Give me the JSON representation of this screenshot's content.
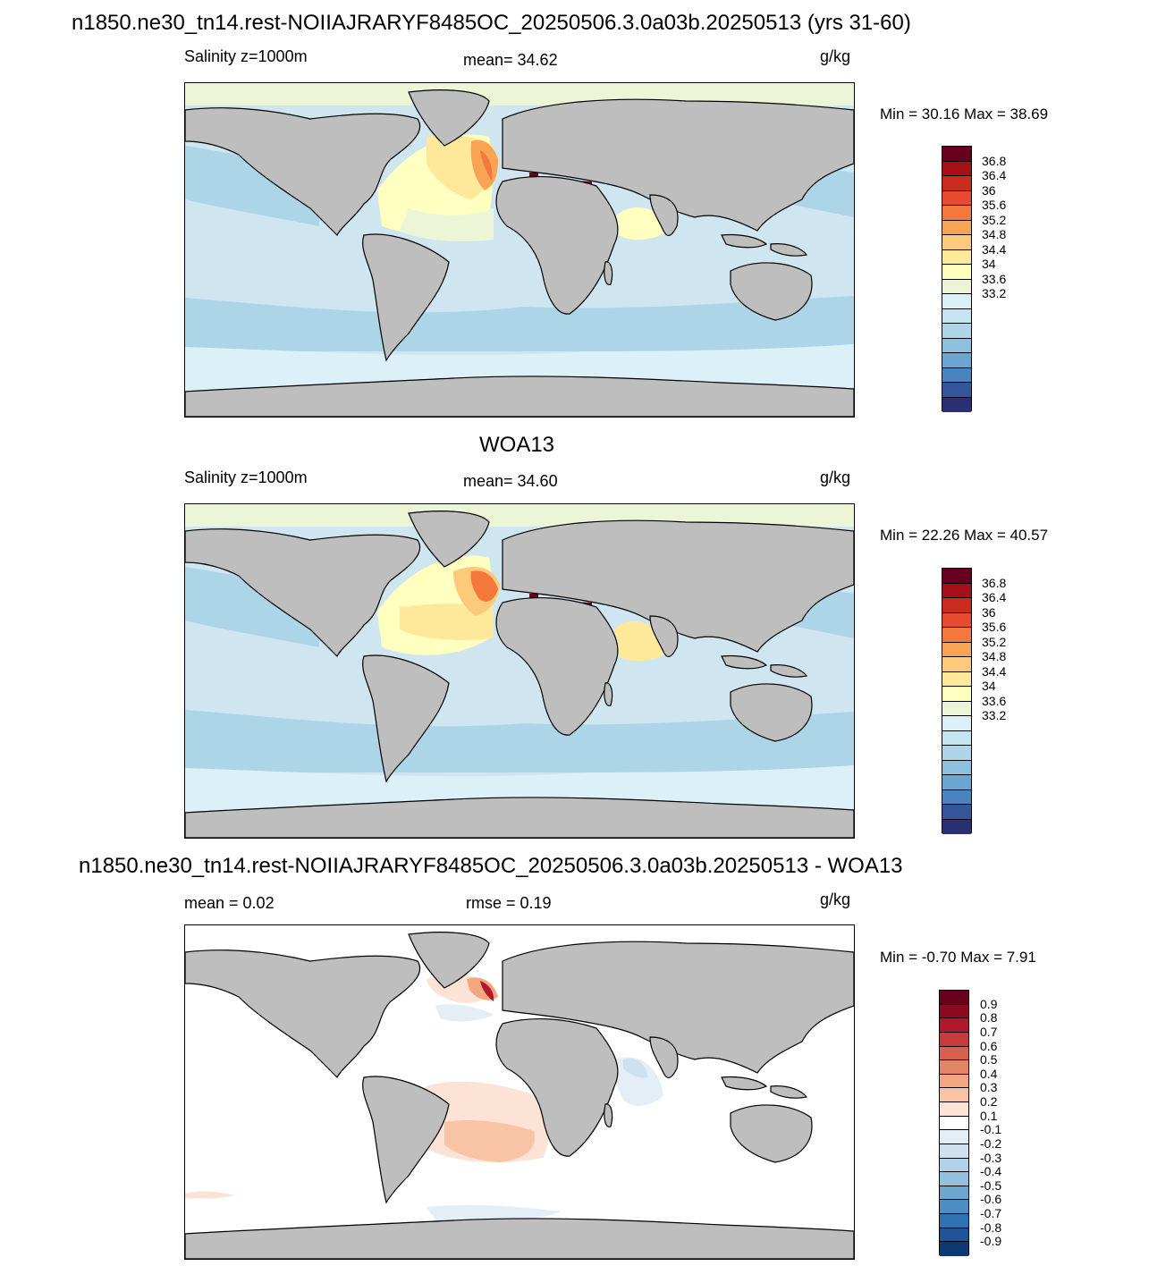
{
  "panels": [
    {
      "title": "n1850.ne30_tn14.rest-NOIIAJRARYF8485OC_20250506.3.0a03b.20250513 (yrs 31-60)",
      "left_label": "Salinity z=1000m",
      "center_label": "mean=  34.62",
      "units": "g/kg",
      "minmax": "Min =  30.16 Max =  38.69",
      "colorbar": {
        "labels": [
          "36.8",
          "36.4",
          "36",
          "35.6",
          "35.2",
          "34.8",
          "34.4",
          "34",
          "33.6",
          "33.2"
        ],
        "colors": [
          "#67001f",
          "#a50f15",
          "#cb2b1f",
          "#e64b2c",
          "#f4783c",
          "#f9a455",
          "#fdc97a",
          "#fee89a",
          "#ffffbf",
          "#ecf6d6",
          "#dcf0f7",
          "#c5e4f0",
          "#acd5e8",
          "#8dc0df",
          "#6aa6d1",
          "#4a84bf",
          "#35559c",
          "#2a2f70"
        ]
      }
    },
    {
      "title": "WOA13",
      "left_label": "Salinity z=1000m",
      "center_label": "mean=  34.60",
      "units": "g/kg",
      "minmax": "Min =  22.26 Max =  40.57",
      "colorbar": {
        "labels": [
          "36.8",
          "36.4",
          "36",
          "35.6",
          "35.2",
          "34.8",
          "34.4",
          "34",
          "33.6",
          "33.2"
        ],
        "colors": [
          "#67001f",
          "#a50f15",
          "#cb2b1f",
          "#e64b2c",
          "#f4783c",
          "#f9a455",
          "#fdc97a",
          "#fee89a",
          "#ffffbf",
          "#ecf6d6",
          "#dcf0f7",
          "#c5e4f0",
          "#acd5e8",
          "#8dc0df",
          "#6aa6d1",
          "#4a84bf",
          "#35559c",
          "#2a2f70"
        ]
      }
    },
    {
      "title": "n1850.ne30_tn14.rest-NOIIAJRARYF8485OC_20250506.3.0a03b.20250513 - WOA13",
      "left_label": "mean =   0.02",
      "center_label": "rmse =   0.19",
      "units": "g/kg",
      "minmax": "Min =  -0.70 Max =   7.91",
      "colorbar": {
        "labels": [
          "0.9",
          "0.8",
          "0.7",
          "0.6",
          "0.5",
          "0.4",
          "0.3",
          "0.2",
          "0.1",
          "-0.1",
          "-0.2",
          "-0.3",
          "-0.4",
          "-0.5",
          "-0.6",
          "-0.7",
          "-0.8",
          "-0.9"
        ],
        "colors": [
          "#67001f",
          "#8c0a1e",
          "#b2182b",
          "#c93a3a",
          "#d6604d",
          "#e38466",
          "#f4a582",
          "#f9c3a6",
          "#fde3d5",
          "#ffffff",
          "#e4eef6",
          "#cfe1ef",
          "#b3d2e7",
          "#92c0de",
          "#6aa8d2",
          "#4a8ec4",
          "#2f72b2",
          "#1f5597",
          "#0b3a75"
        ]
      }
    }
  ],
  "colors": {
    "land": "#bebebe",
    "ocean_bg_panel1": "#cfe6f1",
    "ocean_bg_panel3": "#ffffff"
  }
}
